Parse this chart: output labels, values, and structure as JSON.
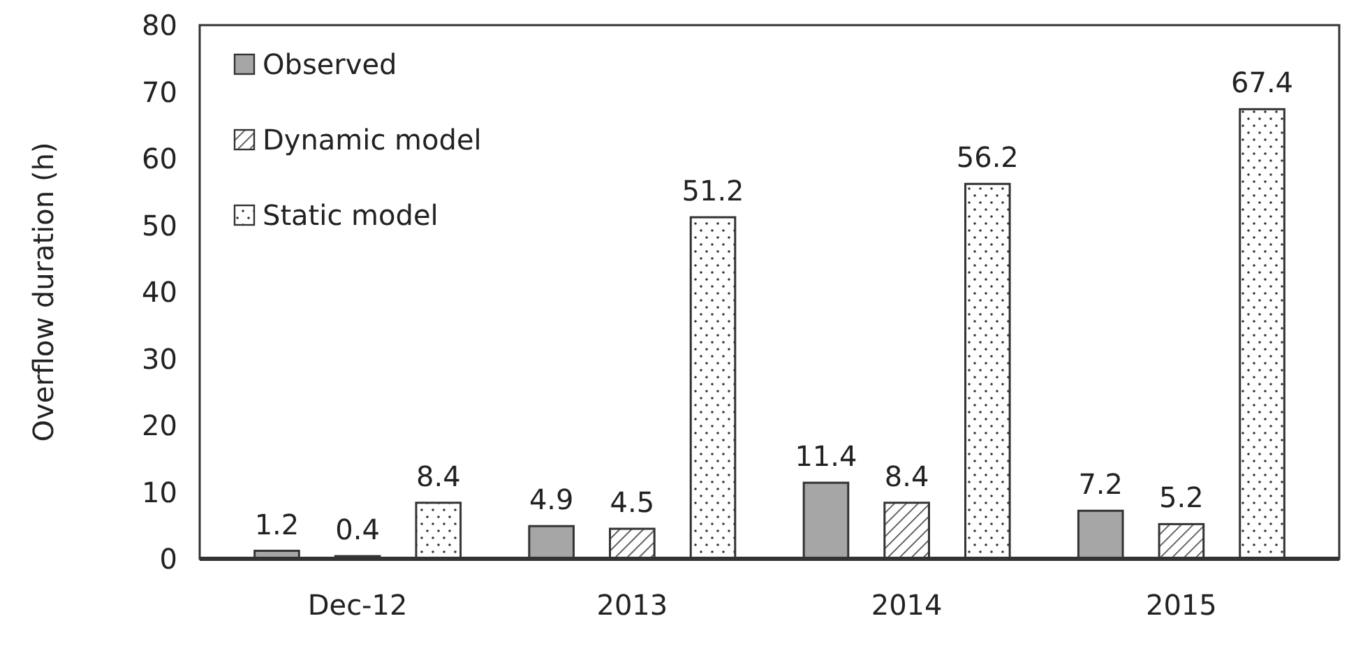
{
  "chart_data": {
    "type": "bar",
    "ylabel": "Overflow duration (h)",
    "categories": [
      "Dec-12",
      "2013",
      "2014",
      "2015"
    ],
    "series": [
      {
        "name": "Observed",
        "color": "#a6a6a6",
        "values": [
          1.2,
          4.9,
          11.4,
          7.2
        ]
      },
      {
        "name": "Dynamic model",
        "color": "#333333",
        "values": [
          0.4,
          4.5,
          8.4,
          5.2
        ]
      },
      {
        "name": "Static model",
        "color": "#333333",
        "values": [
          8.4,
          51.2,
          56.2,
          67.4
        ]
      }
    ],
    "ylim": [
      0,
      80
    ],
    "yticks": [
      0,
      10,
      20,
      30,
      40,
      50,
      60,
      70,
      80
    ],
    "grid": false,
    "legend": "top left",
    "data_labels": true
  }
}
